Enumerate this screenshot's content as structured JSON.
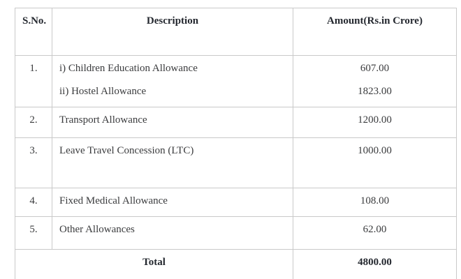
{
  "colors": {
    "background": "#ffffff",
    "border": "#c9c9c9",
    "header_text": "#24282f",
    "body_text": "#3a3b3d"
  },
  "table": {
    "headers": {
      "sno": "S.No.",
      "description": "Description",
      "amount": "Amount(Rs.in Crore)"
    },
    "rows": [
      {
        "sno": "1.",
        "description_lines": [
          "i) Children Education Allowance",
          "ii) Hostel Allowance"
        ],
        "amount_lines": [
          "607.00",
          "1823.00"
        ]
      },
      {
        "sno": "2.",
        "description_lines": [
          "Transport Allowance"
        ],
        "amount_lines": [
          "1200.00"
        ]
      },
      {
        "sno": "3.",
        "description_lines": [
          "Leave Travel Concession (LTC)"
        ],
        "amount_lines": [
          "1000.00"
        ]
      },
      {
        "sno": "4.",
        "description_lines": [
          "Fixed Medical Allowance"
        ],
        "amount_lines": [
          "108.00"
        ]
      },
      {
        "sno": "5.",
        "description_lines": [
          "Other Allowances"
        ],
        "amount_lines": [
          "62.00"
        ]
      }
    ],
    "total_row": {
      "label": "Total",
      "amount": "4800.00"
    }
  }
}
